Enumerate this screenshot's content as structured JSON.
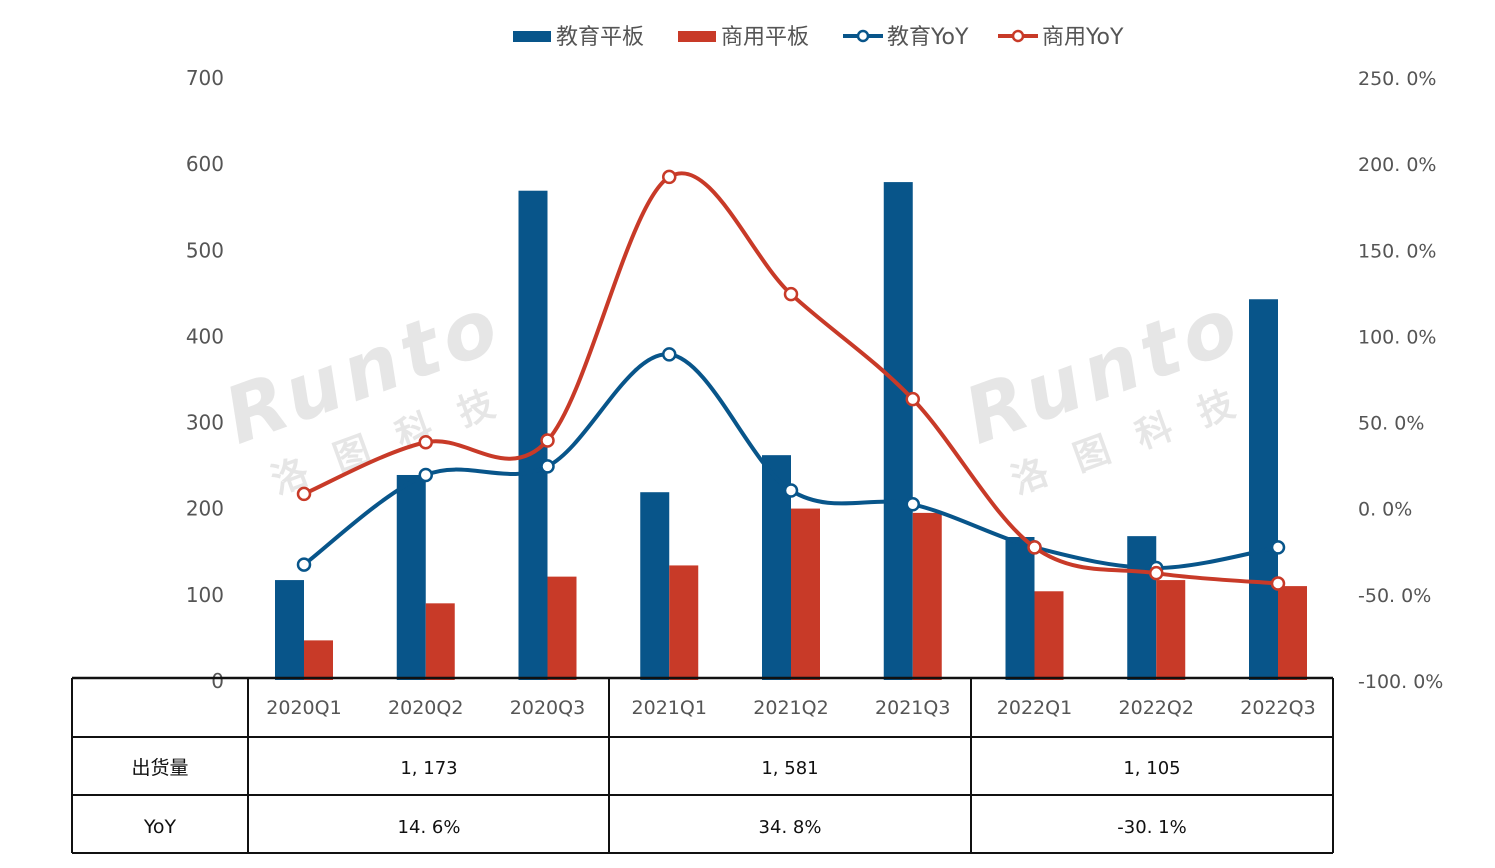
{
  "chart_data": {
    "type": "bar+line",
    "categories": [
      "2020Q1",
      "2020Q2",
      "2020Q3",
      "2021Q1",
      "2021Q2",
      "2021Q3",
      "2022Q1",
      "2022Q2",
      "2022Q3"
    ],
    "series": [
      {
        "name": "教育平板",
        "kind": "bar",
        "axis": "left",
        "color": "#08558A",
        "values": [
          116,
          238,
          568,
          218,
          261,
          578,
          166,
          167,
          442
        ]
      },
      {
        "name": "商用平板",
        "kind": "bar",
        "axis": "left",
        "color": "#C83A28",
        "values": [
          46,
          89,
          120,
          133,
          199,
          194,
          103,
          116,
          109
        ]
      },
      {
        "name": "教育YoY",
        "kind": "line",
        "axis": "right",
        "color": "#08558A",
        "values": [
          -33,
          19,
          24,
          89,
          10,
          2,
          -23,
          -35,
          -23
        ]
      },
      {
        "name": "商用YoY",
        "kind": "line",
        "axis": "right",
        "color": "#C83A28",
        "values": [
          8,
          38,
          39,
          192,
          124,
          63,
          -23,
          -38,
          -44
        ]
      }
    ],
    "left_axis": {
      "ylim": [
        0,
        700
      ],
      "ticks": [
        "0",
        "100",
        "200",
        "300",
        "400",
        "500",
        "600",
        "700"
      ]
    },
    "right_axis": {
      "ylim": [
        -100,
        250
      ],
      "ticks": [
        "-100. 0%",
        "-50. 0%",
        "0. 0%",
        "50. 0%",
        "100. 0%",
        "150. 0%",
        "200. 0%",
        "250. 0%"
      ]
    },
    "legend_position": "top",
    "grid": false,
    "watermark": "Runto 洛图科技",
    "table": {
      "rows": [
        {
          "label": "出货量",
          "cells": [
            "1, 173",
            "1, 581",
            "1, 105"
          ]
        },
        {
          "label": "YoY",
          "cells": [
            "14. 6%",
            "34. 8%",
            "-30. 1%"
          ]
        }
      ]
    }
  }
}
